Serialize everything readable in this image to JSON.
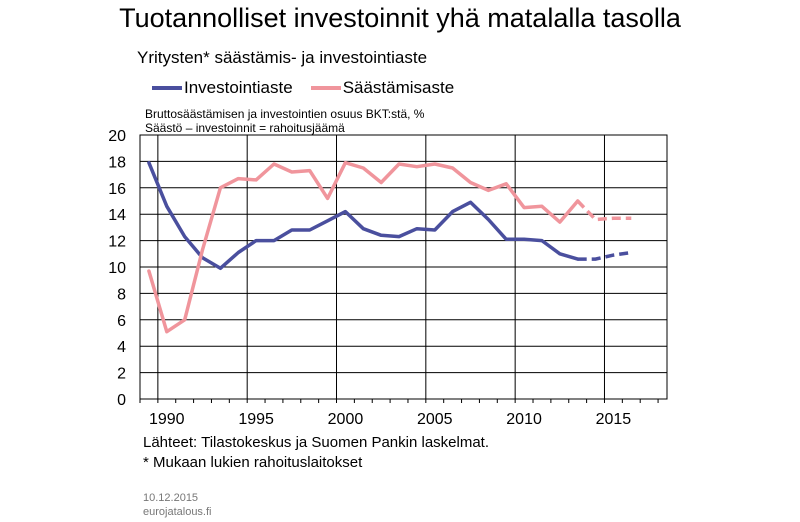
{
  "title": "Tuotannolliset investoinnit yhä matalalla tasolla",
  "subtitle": "Yritysten* säästämis- ja investointiaste",
  "unit_line1": "Bruttosäästämisen ja investointien osuus BKT:stä, %",
  "unit_line2": "Säästö  – investoinnit = rahoitusjäämä",
  "sources": "Lähteet: Tilastokeskus ja Suomen Pankin laskelmat.",
  "footnote": "* Mukaan lukien rahoituslaitokset",
  "date": "10.12.2015",
  "site": "eurojatalous.fi",
  "chart_data": {
    "type": "line",
    "xlim": [
      1988.5,
      2018
    ],
    "ylim": [
      0,
      20
    ],
    "yticks": [
      0,
      2,
      4,
      6,
      8,
      10,
      12,
      14,
      16,
      18,
      20
    ],
    "xticks": [
      1990,
      1995,
      2000,
      2005,
      2010,
      2015
    ],
    "grid": true,
    "legend": "top-left",
    "series": [
      {
        "name": "Investointiaste",
        "color": "#4a4f9e",
        "x": [
          1989,
          1990,
          1991,
          1992,
          1993,
          1994,
          1995,
          1996,
          1997,
          1998,
          1999,
          2000,
          2001,
          2002,
          2003,
          2004,
          2005,
          2006,
          2007,
          2008,
          2009,
          2010,
          2011,
          2012,
          2013
        ],
        "values": [
          17.9,
          14.6,
          12.3,
          10.7,
          9.9,
          11.1,
          12.0,
          12.0,
          12.8,
          12.8,
          13.5,
          14.2,
          12.9,
          12.4,
          12.3,
          12.9,
          12.8,
          14.2,
          14.9,
          13.6,
          12.1,
          12.1,
          12.0,
          11.0,
          10.6
        ],
        "forecast_x": [
          2013,
          2014,
          2015,
          2016
        ],
        "forecast_values": [
          10.6,
          10.6,
          10.9,
          11.1
        ]
      },
      {
        "name": "Säästämisaste",
        "color": "#f0959c",
        "x": [
          1989,
          1990,
          1991,
          1992,
          1993,
          1994,
          1995,
          1996,
          1997,
          1998,
          1999,
          2000,
          2001,
          2002,
          2003,
          2004,
          2005,
          2006,
          2007,
          2008,
          2009,
          2010,
          2011,
          2012,
          2013
        ],
        "values": [
          9.7,
          5.1,
          6.0,
          11.3,
          16.0,
          16.7,
          16.6,
          17.8,
          17.2,
          17.3,
          15.2,
          17.9,
          17.5,
          16.4,
          17.8,
          17.6,
          17.8,
          17.5,
          16.4,
          15.8,
          16.3,
          14.5,
          14.6,
          13.4,
          15.0
        ],
        "forecast_x": [
          2013,
          2014,
          2015,
          2016
        ],
        "forecast_values": [
          15.0,
          13.6,
          13.7,
          13.7
        ]
      }
    ]
  }
}
